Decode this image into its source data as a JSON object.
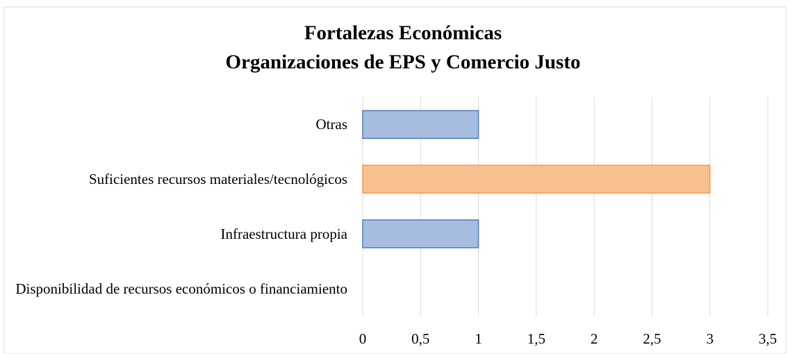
{
  "chart_data": {
    "type": "hbar",
    "title": "Fortalezas Económicas",
    "subtitle": "Organizaciones de EPS y Comercio Justo",
    "categories": [
      "Otras",
      "Suficientes recursos materiales/tecnológicos",
      "Infraestructura propia",
      "Disponibilidad de recursos económicos o financiamiento"
    ],
    "values": [
      1,
      3,
      1,
      0
    ],
    "colors": [
      "#a7bde0",
      "#f9c08f",
      "#a7bde0",
      "#a7bde0"
    ],
    "edge_colors": [
      "#4a7ebb",
      "#f79646",
      "#4a7ebb",
      "#4a7ebb"
    ],
    "xlim": [
      0,
      3.5
    ],
    "xticks": [
      0,
      {
        "value": 0.5,
        "label": "0,5"
      },
      1,
      {
        "value": 1.5,
        "label": "1,5"
      },
      2,
      {
        "value": 2.5,
        "label": "2,5"
      },
      3,
      {
        "value": 3.5,
        "label": "3,5"
      }
    ],
    "grid": true
  }
}
